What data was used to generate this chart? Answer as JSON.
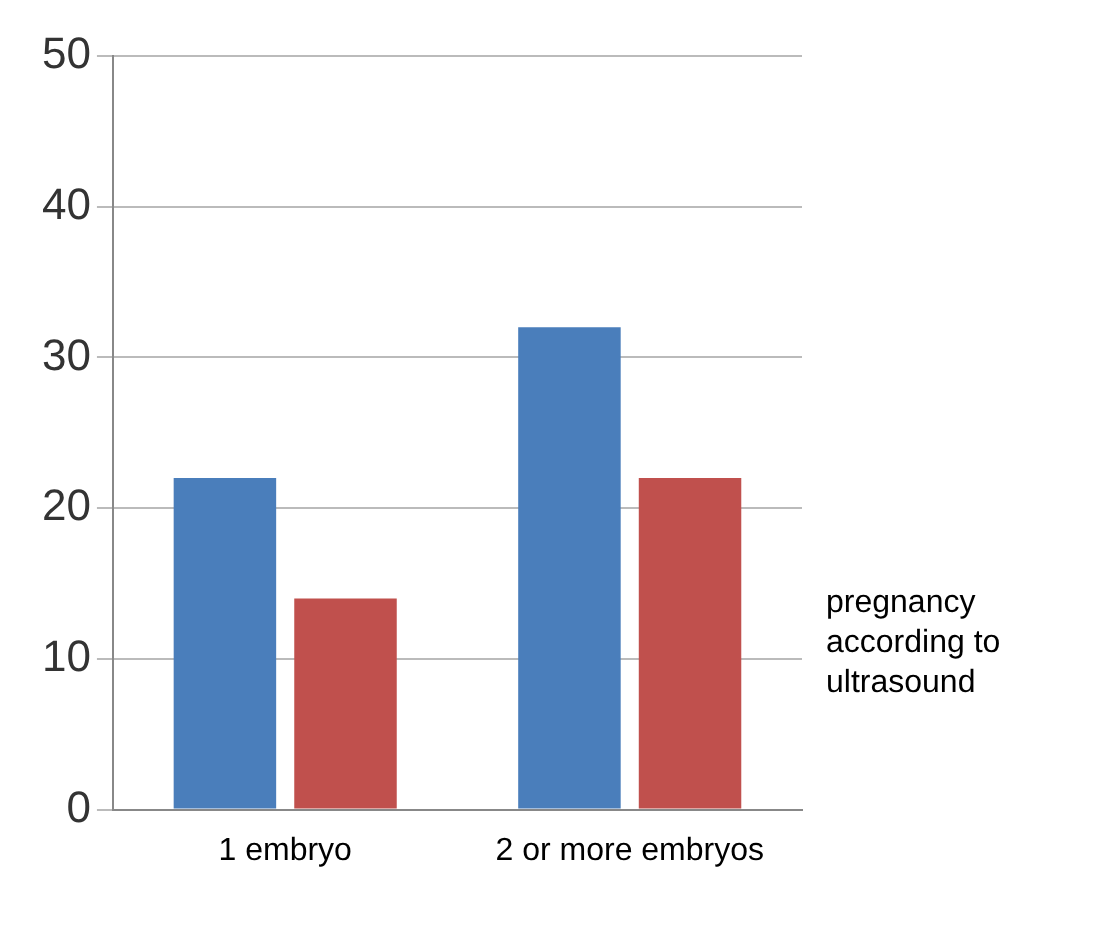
{
  "chart_data": {
    "type": "bar",
    "categories": [
      "1 embryo",
      "2 or more embryos"
    ],
    "series": [
      {
        "color": "#4a7ebb",
        "values": [
          22,
          32
        ]
      },
      {
        "name": "pregnancy according to ultrasound",
        "color": "#c0504d",
        "values": [
          14,
          22
        ]
      }
    ],
    "ylim": [
      0,
      50
    ],
    "yticks": [
      0,
      10,
      20,
      30,
      40,
      50
    ],
    "grid": "y"
  }
}
